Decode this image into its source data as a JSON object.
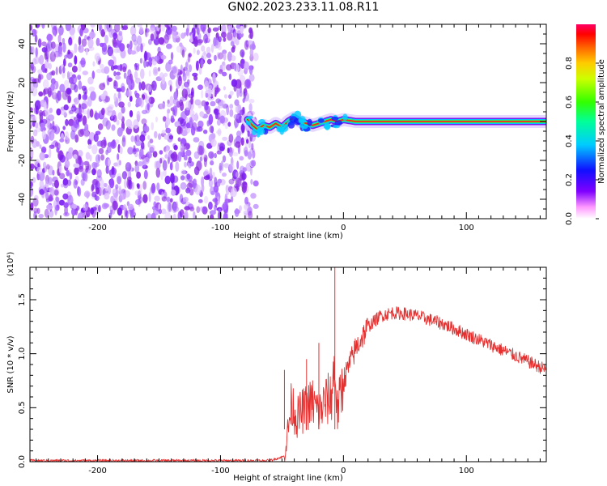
{
  "title": "GN02.2023.233.11.08.R11",
  "chart_data": [
    {
      "type": "heatmap",
      "xlabel": "Height of straight line (km)",
      "ylabel": "Frequency (Hz)",
      "xlim": [
        -255,
        165
      ],
      "ylim": [
        -50,
        50
      ],
      "xticks": [
        -200,
        -100,
        0,
        100
      ],
      "yticks": [
        -40,
        -20,
        0,
        20,
        40
      ],
      "noise_region_x": [
        -255,
        -75
      ],
      "signal_track": {
        "x": [
          -78,
          -74,
          -70,
          -65,
          -60,
          -55,
          -50,
          -45,
          -40,
          -35,
          -30,
          -25,
          -20,
          -15,
          -10,
          -5,
          0,
          10,
          20,
          30,
          40,
          60,
          80,
          100,
          120,
          140,
          165
        ],
        "y": [
          1,
          -2,
          -4,
          -2,
          -3,
          -1,
          -3,
          0,
          2,
          0,
          -1,
          -2,
          -1,
          0,
          1,
          0,
          1,
          0,
          0,
          0,
          0,
          0,
          0,
          0,
          0,
          0,
          0
        ]
      },
      "colorbar": {
        "label": "Normalized spectral amplitude",
        "ticks": [
          "0.0",
          "0.2",
          "0.4",
          "0.6",
          "0.8"
        ],
        "tick_values": [
          0.0,
          0.2,
          0.4,
          0.6,
          0.8
        ],
        "range": [
          0,
          1
        ]
      }
    },
    {
      "type": "line",
      "xlabel": "Height of straight line (km)",
      "ylabel": "SNR (10 * v/v)",
      "y_multiplier_label": "(x10⁴)",
      "xlim": [
        -255,
        165
      ],
      "ylim": [
        0,
        1.8
      ],
      "xticks": [
        -200,
        -100,
        0,
        100
      ],
      "yticks": [
        0.0,
        0.5,
        1.0,
        1.5
      ],
      "ytick_labels": [
        "0.0",
        "0.5",
        "1.0",
        "1.5"
      ],
      "color": "#e53030",
      "series": [
        {
          "x": [
            -255,
            -150,
            -60,
            -48,
            -45,
            -42,
            -38,
            -35,
            -30,
            -25,
            -20,
            -15,
            -10,
            -7,
            -5,
            0,
            10,
            20,
            30,
            40,
            50,
            60,
            80,
            100,
            120,
            140,
            165
          ],
          "y": [
            0.01,
            0.01,
            0.01,
            0.05,
            0.3,
            0.55,
            0.4,
            0.45,
            0.5,
            0.55,
            0.45,
            0.55,
            0.6,
            0.9,
            0.45,
            0.75,
            1.05,
            1.25,
            1.35,
            1.38,
            1.37,
            1.35,
            1.28,
            1.18,
            1.08,
            0.98,
            0.85
          ]
        }
      ],
      "spikes": [
        {
          "x": -48,
          "y": 0.85
        },
        {
          "x": -30,
          "y": 0.95
        },
        {
          "x": -20,
          "y": 1.1
        },
        {
          "x": -7,
          "y": 1.8
        }
      ]
    }
  ]
}
